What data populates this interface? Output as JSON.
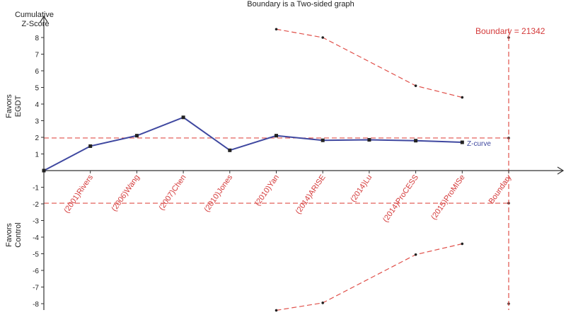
{
  "chart_data": {
    "type": "line",
    "title": "Boundary is a Two-sided graph",
    "ylabel": "Cumulative Z-Score",
    "favors_upper": "Favors EGDT",
    "favors_lower": "Favors Control",
    "boundary_label": "Boundary = 21342",
    "zcurve_label": "Z-curve",
    "ylim": [
      -8.5,
      9
    ],
    "yticks": [
      -8,
      -7,
      -6,
      -5,
      -4,
      -3,
      -2,
      -1,
      1,
      2,
      3,
      4,
      5,
      6,
      7,
      8
    ],
    "categories": [
      "(2001)Rivers",
      "(2006)Wang",
      "(2007)Chen",
      "(2010)Jones",
      "(2010)Yan",
      "(2014)ARISE",
      "(2014)Lu",
      "(2014)ProCESS",
      "(2015)ProMISe",
      "Boundary"
    ],
    "z_curve": {
      "name": "Z-curve",
      "values": [
        0,
        1.47,
        2.1,
        3.2,
        1.22,
        2.1,
        1.82,
        1.85,
        1.8,
        1.7
      ]
    },
    "conventional_boundary": 1.96,
    "monitoring_boundary_upper": {
      "x": [
        5,
        6,
        8,
        9,
        10
      ],
      "y": [
        8.5,
        8.0,
        5.1,
        4.4,
        8.0
      ]
    },
    "monitoring_boundary_lower": {
      "x": [
        5,
        6,
        8,
        9,
        10
      ],
      "y": [
        -8.4,
        -7.95,
        -5.05,
        -4.4,
        -8.0
      ]
    },
    "colors": {
      "curve": "#3f48a0",
      "boundary": "#e0504a",
      "axis": "#333333",
      "label_red": "#d43a3a"
    }
  }
}
